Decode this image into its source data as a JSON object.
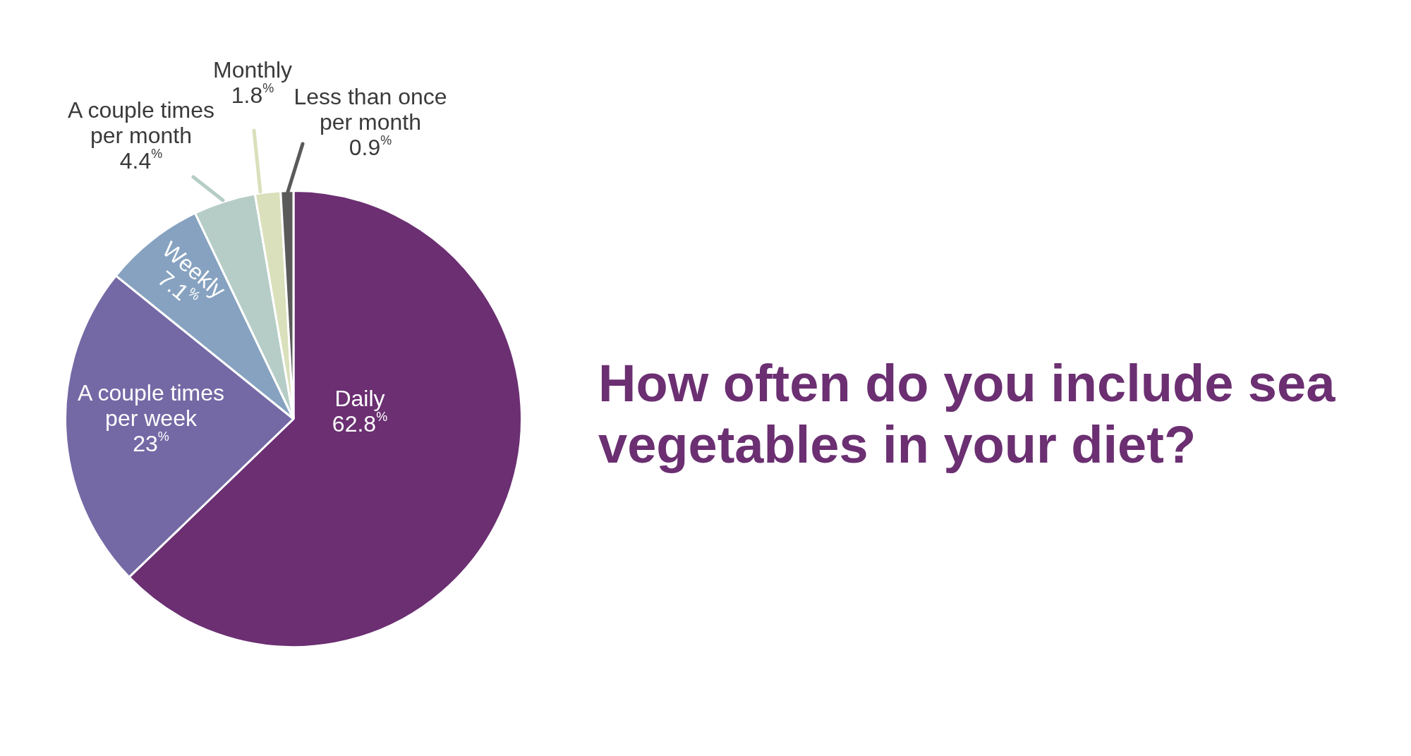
{
  "chart_data": {
    "type": "pie",
    "title": "How often do you include sea vegetables in your diet?",
    "categories": [
      "Daily",
      "A couple times per week",
      "Weekly",
      "A couple times per month",
      "Monthly",
      "Less than once per month"
    ],
    "values": [
      62.8,
      23,
      7.1,
      4.4,
      1.8,
      0.9
    ],
    "colors": [
      "#6b2f72",
      "#7469a5",
      "#86a2c0",
      "#b5cdc6",
      "#d9e0bb",
      "#5a5a5a"
    ],
    "value_labels": [
      "62.8%",
      "23%",
      "7.1%",
      "4.4%",
      "1.8%",
      "0.9%"
    ]
  }
}
